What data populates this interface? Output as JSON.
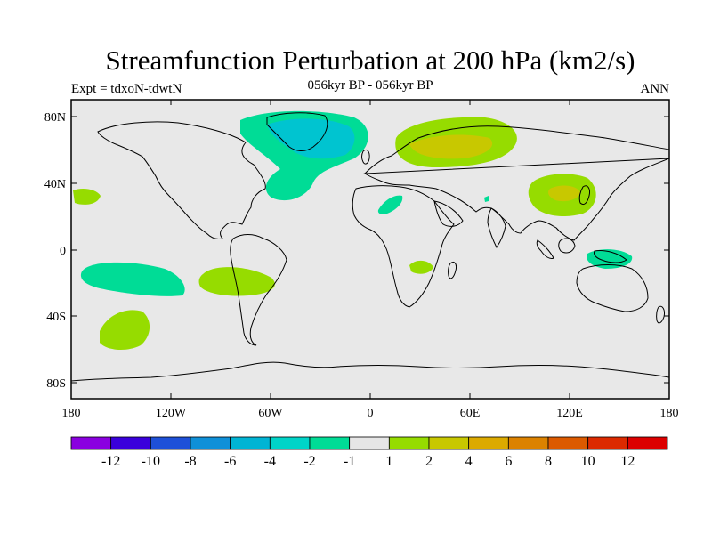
{
  "title": "Streamfunction Perturbation at 200 hPa (km2/s)",
  "subtitle": "056kyr BP - 056kyr BP",
  "left_label": "Expt = tdxoN-tdwtN",
  "right_label": "ANN",
  "map": {
    "background": "#e8e8e8",
    "lat_ticks": [
      "80N",
      "40N",
      "0",
      "40S",
      "80S"
    ],
    "lon_ticks": [
      "180",
      "120W",
      "60W",
      "0",
      "60E",
      "120E",
      "180"
    ]
  },
  "colorbar": {
    "colors": [
      "#8a00e0",
      "#3a00dc",
      "#1e50d8",
      "#0f90d8",
      "#00b4d4",
      "#00d4c8",
      "#00dc96",
      "#e6e6e6",
      "#96dc00",
      "#c8c800",
      "#dcaa00",
      "#dc8200",
      "#dc5a00",
      "#dc2a00",
      "#dc0000"
    ],
    "labels": [
      "-12",
      "-10",
      "-8",
      "-6",
      "-4",
      "-2",
      "-1",
      "1",
      "2",
      "4",
      "6",
      "8",
      "10",
      "12"
    ]
  }
}
